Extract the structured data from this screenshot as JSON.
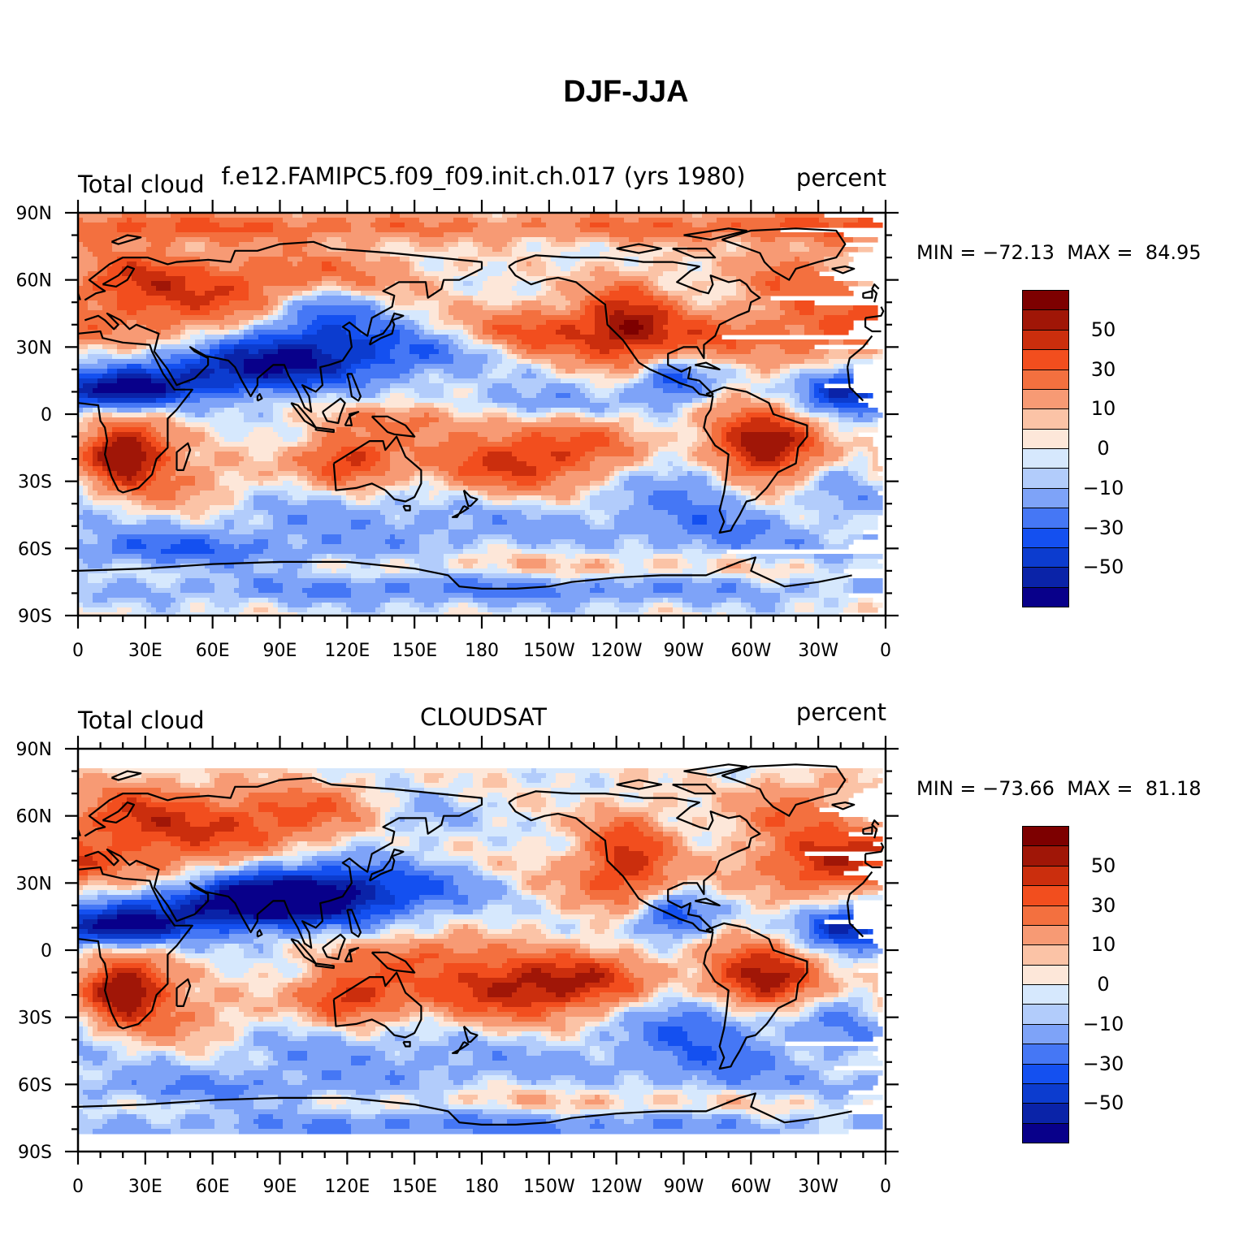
{
  "title": "DJF-JJA",
  "colors": {
    "scale": [
      "#08008a",
      "#0a23a8",
      "#0c3ccf",
      "#1450f0",
      "#4577f5",
      "#7ea3f8",
      "#b2ccfb",
      "#d6e8fd",
      "#fde7d9",
      "#fbc3a6",
      "#f79a74",
      "#f3703f",
      "#f24e1e",
      "#cb2e0d",
      "#a01607",
      "#7d0000"
    ],
    "coast": "#000000",
    "ocean_bg": "#ffffff"
  },
  "colorbar": {
    "bounds": [
      -70,
      -60,
      -50,
      -40,
      -30,
      -20,
      -10,
      -5,
      0,
      5,
      10,
      20,
      30,
      40,
      50,
      60,
      70
    ],
    "labels": [
      "50",
      "30",
      "10",
      "0",
      "−10",
      "−30",
      "−50"
    ]
  },
  "axes": {
    "y_ticks": [
      "90N",
      "60N",
      "30N",
      "0",
      "30S",
      "60S",
      "90S"
    ],
    "x_ticks": [
      "0",
      "30E",
      "60E",
      "90E",
      "120E",
      "150E",
      "180",
      "150W",
      "120W",
      "90W",
      "60W",
      "30W",
      "0"
    ]
  },
  "panels": [
    {
      "left_label": "Total cloud",
      "center_label": "f.e12.FAMIPC5.f09_f09.init.ch.017 (yrs 1980)",
      "right_label": "percent",
      "min_label": "MIN =",
      "min_value": "−72.13",
      "max_label": "MAX =",
      "max_value": "84.95",
      "lat_coverage": [
        -90,
        90
      ]
    },
    {
      "left_label": "Total cloud",
      "center_label": "CLOUDSAT",
      "right_label": "percent",
      "min_label": "MIN =",
      "min_value": "−73.66",
      "max_label": "MAX =",
      "max_value": "81.18",
      "lat_coverage": [
        -82,
        82
      ]
    }
  ]
}
